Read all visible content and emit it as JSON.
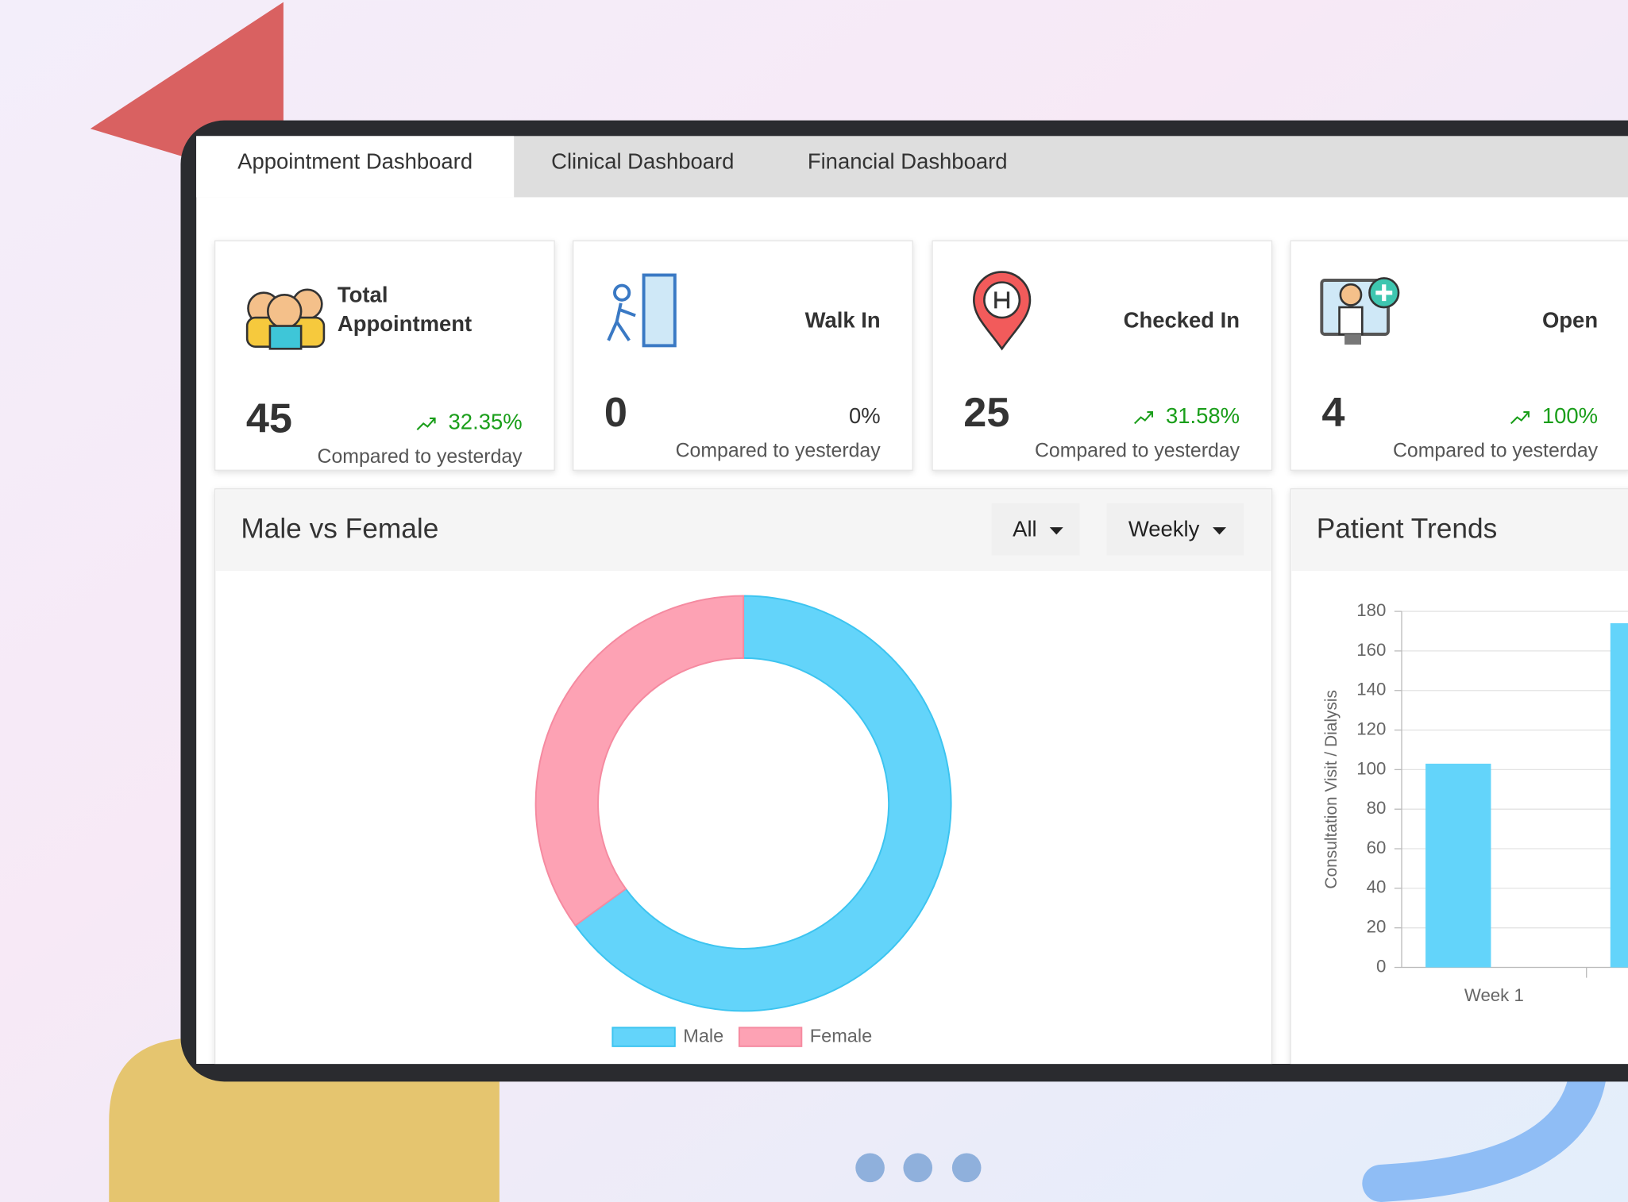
{
  "tabs": [
    "Appointment Dashboard",
    "Clinical Dashboard",
    "Financial Dashboard"
  ],
  "cards": [
    {
      "title": "Total Appointment",
      "value": "45",
      "change": "32.35%",
      "note": "Compared to yesterday"
    },
    {
      "title": "Walk In",
      "value": "0",
      "change": "0%",
      "note": "Compared to yesterday"
    },
    {
      "title": "Checked In",
      "value": "25",
      "change": "31.58%",
      "note": "Compared to yesterday"
    },
    {
      "title": "Open",
      "value": "4",
      "change": "100%",
      "note": "Compared to yesterday"
    }
  ],
  "gender_panel": {
    "title": "Male vs Female",
    "filters": [
      "All",
      "Weekly"
    ],
    "chart_data": {
      "type": "pie",
      "categories": [
        "Male",
        "Female"
      ],
      "values": [
        65,
        35
      ],
      "colors": [
        "#63d4fa",
        "#fda2b4"
      ],
      "hole": 0.7
    }
  },
  "trends_panel": {
    "title": "Patient Trends",
    "chart_data": {
      "type": "bar",
      "y_label": "Consultation Visit / Dialysis",
      "categories": [
        "Week 1",
        null
      ],
      "values": [
        103,
        174
      ],
      "color": "#63d4fa",
      "ylim": [
        0,
        180
      ],
      "yticks": [
        0,
        20,
        40,
        60,
        80,
        100,
        120,
        140,
        160,
        180
      ],
      "grid": true
    }
  }
}
